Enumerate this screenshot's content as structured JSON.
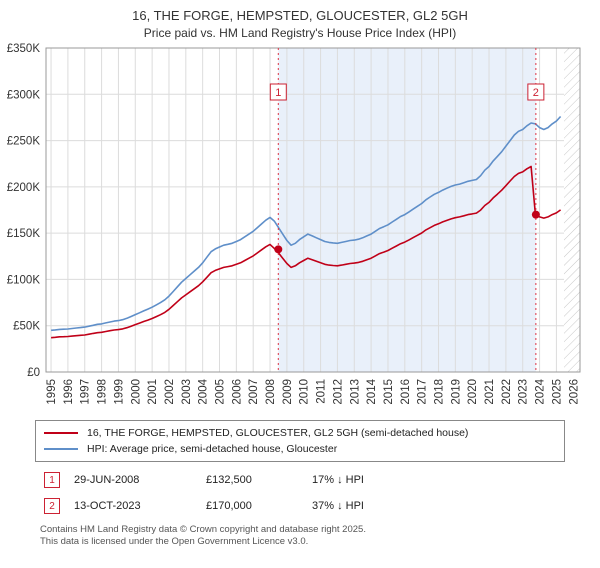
{
  "title": "16, THE FORGE, HEMPSTED, GLOUCESTER, GL2 5GH",
  "subtitle": "Price paid vs. HM Land Registry's House Price Index (HPI)",
  "chart_data": {
    "type": "line",
    "xlim": [
      1994.7,
      2026.4
    ],
    "ylim": [
      0,
      350
    ],
    "x_start": 1995,
    "x_step": 0.25,
    "x_tick_years": [
      1995,
      1996,
      1997,
      1998,
      1999,
      2000,
      2001,
      2002,
      2003,
      2004,
      2005,
      2006,
      2007,
      2008,
      2009,
      2010,
      2011,
      2012,
      2013,
      2014,
      2015,
      2016,
      2017,
      2018,
      2019,
      2020,
      2021,
      2022,
      2023,
      2024,
      2025,
      2026
    ],
    "y_ticks": [
      {
        "v": 0,
        "label": "£0"
      },
      {
        "v": 50,
        "label": "£50K"
      },
      {
        "v": 100,
        "label": "£100K"
      },
      {
        "v": 150,
        "label": "£150K"
      },
      {
        "v": 200,
        "label": "£200K"
      },
      {
        "v": 250,
        "label": "£250K"
      },
      {
        "v": 300,
        "label": "£300K"
      },
      {
        "v": 350,
        "label": "£350K"
      }
    ],
    "colors": {
      "shade": "#e9f0fa",
      "grid": "#dcdcdc",
      "hatch": "#c8c8c8",
      "sale_line": "#dd3344",
      "flag": "#cc2233"
    },
    "series": [
      {
        "name": "16, THE FORGE, HEMPSTED, GLOUCESTER, GL2 5GH (semi-detached house)",
        "color": "#c00018",
        "values": [
          37.1,
          37.5,
          38,
          38.1,
          38.4,
          38.8,
          39.2,
          39.6,
          40,
          40.8,
          41.7,
          42.5,
          42.9,
          43.7,
          44.6,
          45.4,
          45.8,
          46.6,
          47.9,
          49.5,
          51.2,
          52.8,
          54.5,
          56.1,
          57.8,
          59.8,
          61.9,
          64.4,
          67.7,
          71.8,
          75.9,
          80,
          83.3,
          86.6,
          89.9,
          93.2,
          97.4,
          102.3,
          107.3,
          109.7,
          111.4,
          113,
          113.9,
          114.7,
          116.3,
          118,
          120.5,
          122.9,
          125.4,
          128.7,
          132,
          135.3,
          137.8,
          133.5,
          128.7,
          122.9,
          117.2,
          113,
          114.7,
          118,
          120.5,
          122.9,
          121.3,
          119.6,
          118,
          116.3,
          115.5,
          115.1,
          114.7,
          115.5,
          116.3,
          117.2,
          117.6,
          118.4,
          119.6,
          121.3,
          122.9,
          125.4,
          127.9,
          129.5,
          131.2,
          133.7,
          136.1,
          138.6,
          140.3,
          142.7,
          145.2,
          147.7,
          150.2,
          153.5,
          155.9,
          158.4,
          160.1,
          162.1,
          163.8,
          165.4,
          166.7,
          167.5,
          168.7,
          170,
          170.8,
          171.6,
          174.9,
          179.9,
          183.2,
          188.1,
          192.2,
          196.4,
          201.3,
          206.3,
          211.2,
          214.5,
          216.2,
          219.5,
          222,
          170,
          167.5,
          166.2,
          167.5,
          170,
          171.9,
          175.1
        ]
      },
      {
        "name": "HPI: Average price, semi-detached house, Gloucester",
        "color": "#5f8fc9",
        "values": [
          45,
          45.5,
          46,
          46.2,
          46.5,
          47,
          47.5,
          48,
          48.5,
          49.5,
          50.5,
          51.5,
          52,
          53,
          54,
          55,
          55.5,
          56.5,
          58,
          60,
          62,
          64,
          66,
          68,
          70,
          72.5,
          75,
          78,
          82,
          87,
          92,
          97,
          101,
          105,
          109,
          113,
          118,
          124,
          130,
          133,
          135,
          137,
          138,
          139,
          141,
          143,
          146,
          149,
          152,
          156,
          160,
          164,
          167,
          163,
          156,
          149,
          142,
          137,
          139,
          143,
          146,
          149,
          147,
          145,
          143,
          141,
          140,
          139.5,
          139,
          140,
          141,
          142,
          142.5,
          143.5,
          145,
          147,
          149,
          152,
          155,
          157,
          159,
          162,
          165,
          168,
          170,
          173,
          176,
          179,
          182,
          186,
          189,
          192,
          194,
          196.5,
          198.5,
          200.5,
          202,
          203,
          204.5,
          206,
          207,
          208,
          212,
          218,
          222,
          228,
          233,
          238,
          244,
          250,
          256,
          260,
          262,
          266,
          269,
          268,
          264,
          262,
          264,
          268,
          271,
          276
        ]
      }
    ],
    "shaded_region": [
      2008.49,
      2023.78
    ],
    "hatch_region": [
      2025.45,
      2026.4
    ],
    "sales": [
      {
        "label": "1",
        "x": 2008.49,
        "value": 132.5,
        "date": "29-JUN-2008",
        "price": "£132,500",
        "hpi": "17% ↓ HPI"
      },
      {
        "label": "2",
        "x": 2023.78,
        "value": 170,
        "date": "13-OCT-2023",
        "price": "£170,000",
        "hpi": "37% ↓ HPI"
      }
    ]
  },
  "footer": {
    "line1": "Contains HM Land Registry data © Crown copyright and database right 2025.",
    "line2": "This data is licensed under the Open Government Licence v3.0."
  }
}
